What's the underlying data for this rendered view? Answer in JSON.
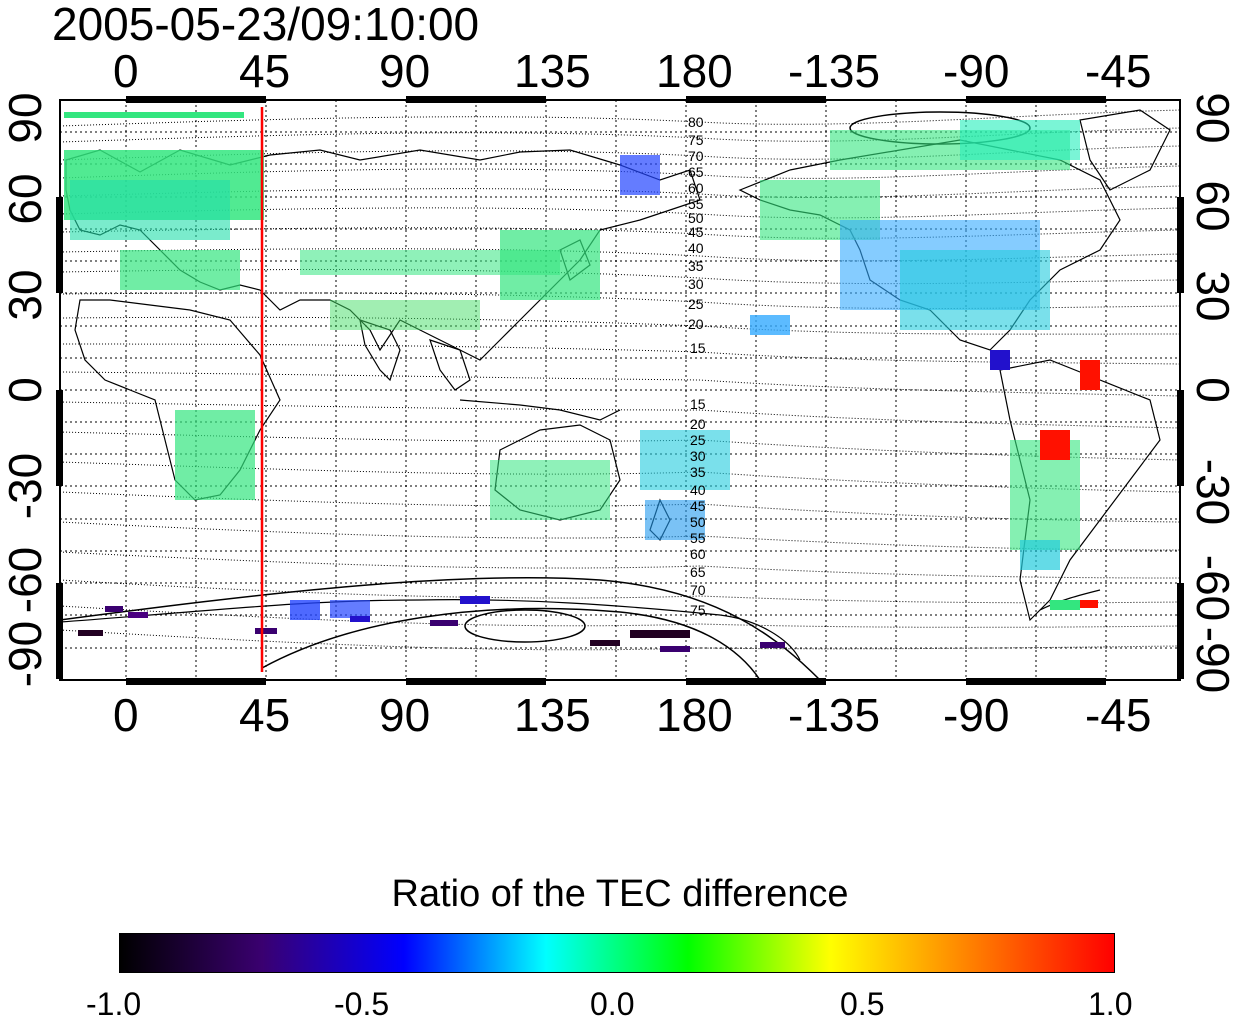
{
  "title": "2005-05-23/09:10:00",
  "axes": {
    "top_ticks": [
      "0",
      "45",
      "90",
      "135",
      "180",
      "-135",
      "-90",
      "-45"
    ],
    "bottom_ticks": [
      "0",
      "45",
      "90",
      "135",
      "180",
      "-135",
      "-90",
      "-45"
    ],
    "left_ticks": [
      "90",
      "60",
      "30",
      "0",
      "-30",
      "-60",
      "-90"
    ],
    "right_ticks": [
      "90",
      "60",
      "30",
      "0",
      "-30",
      "-60",
      "-90"
    ]
  },
  "contour_labels": [
    "80",
    "75",
    "70",
    "65",
    "60",
    "55",
    "50",
    "45",
    "40",
    "35",
    "30",
    "25",
    "20",
    "15",
    "15",
    "20",
    "25",
    "30",
    "35",
    "40",
    "45",
    "50",
    "55",
    "60",
    "65",
    "70",
    "75"
  ],
  "marker_line": {
    "longitude": 45,
    "color": "#ff0000"
  },
  "colorbar": {
    "label": "Ratio of the TEC difference",
    "ticks": [
      "-1.0",
      "-0.5",
      "0.0",
      "0.5",
      "1.0"
    ],
    "range": [
      -1.0,
      1.0
    ],
    "colors": [
      "#000000",
      "#3a0070",
      "#0000ff",
      "#00ffff",
      "#00ff00",
      "#ffff00",
      "#ff7f00",
      "#ff0000"
    ]
  },
  "colors": {
    "land_outline": "#000000",
    "grid": "#000000",
    "data_main": "#33e67f"
  }
}
